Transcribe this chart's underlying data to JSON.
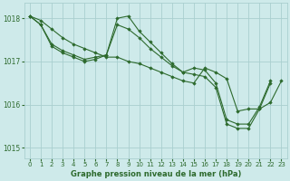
{
  "title": "Graphe pression niveau de la mer (hPa)",
  "background_color": "#ceeaea",
  "grid_color": "#aacfcf",
  "line_color": "#2d6a2d",
  "marker_color": "#2d6a2d",
  "xlim": [
    -0.5,
    23.5
  ],
  "ylim": [
    1014.75,
    1018.35
  ],
  "yticks": [
    1015,
    1016,
    1017,
    1018
  ],
  "xticks": [
    0,
    1,
    2,
    3,
    4,
    5,
    6,
    7,
    8,
    9,
    10,
    11,
    12,
    13,
    14,
    15,
    16,
    17,
    18,
    19,
    20,
    21,
    22,
    23
  ],
  "series": [
    {
      "x": [
        0,
        1,
        2,
        3,
        4,
        5,
        6,
        7,
        8,
        9,
        10,
        11,
        12,
        13,
        14,
        15,
        16,
        17,
        18,
        19,
        20,
        21,
        22,
        23
      ],
      "y": [
        1018.05,
        1017.95,
        1017.75,
        1017.55,
        1017.4,
        1017.3,
        1017.2,
        1017.1,
        1017.1,
        1017.0,
        1016.95,
        1016.85,
        1016.75,
        1016.65,
        1016.55,
        1016.5,
        1016.85,
        1016.75,
        1016.6,
        1015.85,
        1015.9,
        1015.9,
        1016.05,
        1016.55
      ]
    },
    {
      "x": [
        0,
        1,
        2,
        3,
        4,
        5,
        6,
        7,
        8,
        9,
        10,
        11,
        12,
        13,
        14,
        15,
        16,
        17,
        18,
        19,
        20,
        21,
        22
      ],
      "y": [
        1018.05,
        1017.85,
        1017.4,
        1017.25,
        1017.15,
        1017.05,
        1017.1,
        1017.15,
        1018.0,
        1018.05,
        1017.7,
        1017.45,
        1017.2,
        1016.95,
        1016.75,
        1016.85,
        1016.8,
        1016.5,
        1015.65,
        1015.55,
        1015.55,
        1015.95,
        1016.55
      ]
    },
    {
      "x": [
        0,
        1,
        2,
        3,
        4,
        5,
        6,
        7,
        8,
        9,
        10,
        11,
        12,
        13,
        14,
        15,
        16,
        17,
        18,
        19,
        20,
        21,
        22
      ],
      "y": [
        1018.05,
        1017.85,
        1017.35,
        1017.2,
        1017.1,
        1017.0,
        1017.05,
        1017.15,
        1017.85,
        1017.75,
        1017.55,
        1017.3,
        1017.1,
        1016.9,
        1016.75,
        1016.7,
        1016.65,
        1016.4,
        1015.55,
        1015.45,
        1015.45,
        1015.9,
        1016.5
      ]
    }
  ]
}
